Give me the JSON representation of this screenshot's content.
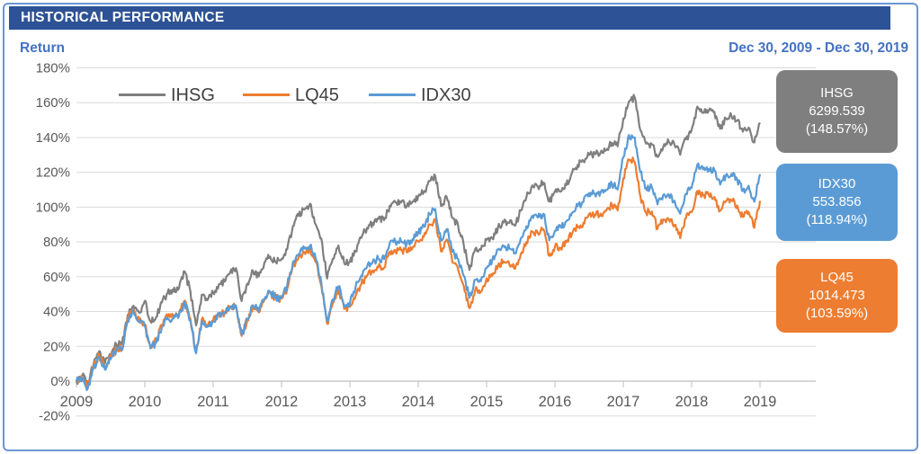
{
  "header": {
    "title": "HISTORICAL PERFORMANCE"
  },
  "subheader": {
    "ylabel": "Return",
    "date_range": "Dec 30, 2009 - Dec 30, 2019"
  },
  "colors": {
    "header_bg": "#2D5295",
    "accent_text": "#4472C4",
    "card_border": "#6C96D2",
    "grid": "#D9D9D9",
    "axis": "#BFBFBF",
    "tick_text": "#595959",
    "legend_text": "#404040",
    "ihsg": "#7F7F7F",
    "lq45": "#ED7D31",
    "idx30": "#5B9BD5"
  },
  "legend": [
    {
      "label": "IHSG",
      "color_key": "ihsg"
    },
    {
      "label": "LQ45",
      "color_key": "lq45"
    },
    {
      "label": "IDX30",
      "color_key": "idx30"
    }
  ],
  "badges": [
    {
      "label": "IHSG",
      "value": "6299.539",
      "return_pct": "(148.57%)",
      "color_key": "ihsg"
    },
    {
      "label": "IDX30",
      "value": "553.856",
      "return_pct": "(118.94%)",
      "color_key": "idx30"
    },
    {
      "label": "LQ45",
      "value": "1014.473",
      "return_pct": "(103.59%)",
      "color_key": "lq45"
    }
  ],
  "chart_data": {
    "type": "line",
    "title": "HISTORICAL PERFORMANCE",
    "ylabel": "Return",
    "x_start": "Dec 30, 2009",
    "x_end": "Dec 30, 2019",
    "x_resolution": "monthly",
    "x_tick_labels": [
      "2009",
      "2010",
      "2011",
      "2012",
      "2013",
      "2014",
      "2015",
      "2016",
      "2017",
      "2018",
      "2019"
    ],
    "y_tick_labels": [
      "-20%",
      "0%",
      "20%",
      "40%",
      "60%",
      "80%",
      "100%",
      "120%",
      "140%",
      "160%",
      "180%"
    ],
    "ylim": [
      -20,
      180
    ],
    "grid": true,
    "legend_position": "top-inside",
    "series": [
      {
        "name": "IHSG",
        "color": "#7F7F7F",
        "final_value": "6299.539",
        "final_return_pct": 148.57,
        "values": [
          0,
          3.0,
          -1.0,
          9.6,
          17.2,
          10.4,
          15.0,
          21.1,
          21.6,
          38.1,
          43.4,
          39.3,
          46.2,
          34.5,
          36.9,
          45.2,
          50.7,
          51.4,
          53.4,
          63.0,
          51.6,
          32.0,
          49.6,
          46.6,
          50.8,
          55.5,
          57.2,
          62.6,
          65.0,
          46.0,
          56.1,
          63.4,
          60.2,
          68.2,
          71.6,
          68.7,
          70.3,
          75.7,
          89.2,
          95.0,
          98.6,
          102.0,
          90.1,
          81.9,
          59.0,
          70.3,
          78.0,
          67.9,
          68.6,
          74.4,
          82.3,
          88.1,
          91.0,
          93.1,
          92.5,
          100.8,
          102.7,
          102.7,
          100.8,
          103.2,
          106.2,
          108.7,
          115.0,
          117.8,
          100.7,
          105.8,
          93.8,
          89.5,
          78.0,
          64.0,
          75.8,
          75.4,
          81.2,
          82.1,
          88.3,
          91.2,
          90.9,
          89.3,
          98.0,
          105.8,
          112.5,
          111.7,
          114.0,
          103.2,
          109.0,
          108.9,
          112.6,
          119.7,
          124.3,
          126.4,
          130.0,
          130.5,
          131.4,
          132.8,
          137.0,
          134.9,
          150.8,
          160.7,
          163.0,
          144.2,
          136.5,
          136.1,
          128.8,
          134.2,
          137.4,
          135.8,
          130.1,
          139.0,
          144.4,
          157.8,
          154.2,
          155.3,
          154.7,
          145.0,
          150.9,
          152.2,
          149.7,
          143.4,
          145.7,
          137.2,
          148.57
        ]
      },
      {
        "name": "LQ45",
        "color": "#ED7D31",
        "final_value": "1014.473",
        "final_return_pct": 103.59,
        "values": [
          0,
          2.3,
          -3.0,
          8.2,
          15.0,
          7.6,
          13.6,
          18.8,
          18.8,
          35.7,
          40.9,
          35.1,
          32.7,
          19.8,
          23.2,
          32.3,
          37.1,
          36.9,
          38.5,
          46.3,
          35.9,
          17.0,
          35.5,
          32.3,
          35.1,
          38.9,
          38.9,
          42.9,
          43.5,
          26.0,
          35.3,
          43.1,
          39.5,
          46.7,
          50.7,
          47.5,
          47.5,
          52.9,
          66.6,
          71.0,
          74.2,
          76.0,
          68.4,
          54.7,
          33.0,
          44.9,
          52.5,
          41.5,
          42.7,
          48.9,
          55.7,
          60.6,
          63.6,
          65.4,
          65.2,
          74.4,
          75.0,
          75.2,
          74.0,
          76.6,
          80.2,
          83.0,
          89.9,
          92.9,
          74.6,
          81.4,
          68.4,
          64.2,
          54.5,
          42.0,
          52.3,
          51.5,
          59.0,
          60.6,
          66.6,
          68.8,
          67.2,
          64.6,
          73.0,
          80.0,
          86.0,
          85.0,
          87.2,
          72.0,
          77.4,
          76.6,
          79.8,
          84.8,
          88.6,
          91.0,
          96.1,
          95.7,
          96.3,
          97.9,
          101.7,
          98.1,
          116.6,
          127.4,
          126.0,
          106.1,
          97.1,
          97.5,
          87.6,
          92.9,
          92.9,
          89.7,
          82.2,
          93.7,
          97.1,
          109.3,
          106.7,
          106.9,
          105.9,
          97.9,
          103.3,
          104.1,
          100.9,
          94.3,
          97.3,
          88.1,
          103.59
        ]
      },
      {
        "name": "IDX30",
        "color": "#5B9BD5",
        "final_value": "553.856",
        "final_return_pct": 118.94,
        "values": [
          0,
          1.3,
          -4.0,
          7.2,
          14.0,
          6.6,
          12.6,
          17.8,
          17.8,
          34.7,
          39.9,
          34.1,
          31.7,
          18.8,
          22.2,
          31.3,
          36.1,
          35.9,
          37.5,
          45.3,
          34.9,
          16.0,
          34.5,
          31.3,
          34.1,
          38.9,
          38.9,
          42.9,
          43.5,
          26.5,
          35.8,
          43.6,
          40.0,
          47.2,
          51.2,
          48.0,
          48.0,
          54.9,
          68.6,
          73.0,
          76.2,
          78.0,
          70.4,
          56.7,
          34.5,
          46.9,
          54.5,
          43.5,
          44.7,
          53.9,
          60.7,
          65.6,
          68.6,
          70.4,
          70.2,
          79.4,
          80.0,
          80.2,
          79.0,
          81.6,
          85.2,
          89.0,
          95.9,
          98.9,
          80.6,
          87.4,
          74.4,
          70.2,
          60.5,
          48.0,
          58.3,
          57.5,
          65.0,
          69.6,
          75.6,
          77.8,
          76.2,
          73.6,
          82.0,
          89.0,
          95.0,
          94.0,
          96.2,
          81.0,
          86.4,
          88.6,
          91.8,
          96.8,
          100.6,
          103.0,
          108.1,
          107.7,
          108.3,
          109.9,
          113.7,
          110.1,
          128.6,
          141.4,
          140.0,
          120.1,
          111.1,
          111.5,
          101.6,
          106.9,
          106.9,
          103.7,
          96.2,
          107.7,
          111.1,
          124.3,
          121.7,
          121.9,
          120.9,
          112.9,
          118.3,
          119.1,
          115.9,
          109.3,
          112.3,
          103.1,
          118.94
        ]
      }
    ]
  }
}
